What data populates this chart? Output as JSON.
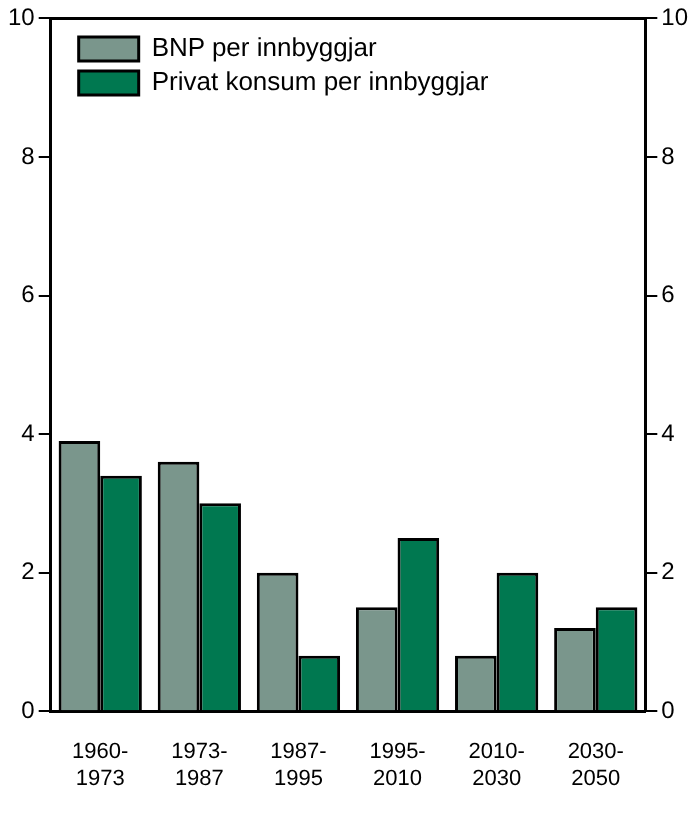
{
  "chart_data": {
    "type": "bar",
    "categories": [
      "1960-1973",
      "1973-1987",
      "1987-1995",
      "1995-2010",
      "2010-2030",
      "2030-2050"
    ],
    "series": [
      {
        "name": "BNP per innbyggjar",
        "color": "#7a968c",
        "values": [
          3.9,
          3.6,
          2.0,
          1.5,
          0.8,
          1.2
        ]
      },
      {
        "name": "Privat konsum per innbyggjar",
        "color": "#007850",
        "values": [
          3.4,
          3.0,
          0.8,
          2.5,
          2.0,
          1.5
        ]
      }
    ],
    "ylim": [
      0,
      10
    ],
    "yticks": [
      0,
      2,
      4,
      6,
      8,
      10
    ],
    "y2lim": [
      0,
      10
    ],
    "y2ticks": [
      0,
      2,
      4,
      6,
      8,
      10
    ],
    "grid": false,
    "legend": "top left"
  }
}
